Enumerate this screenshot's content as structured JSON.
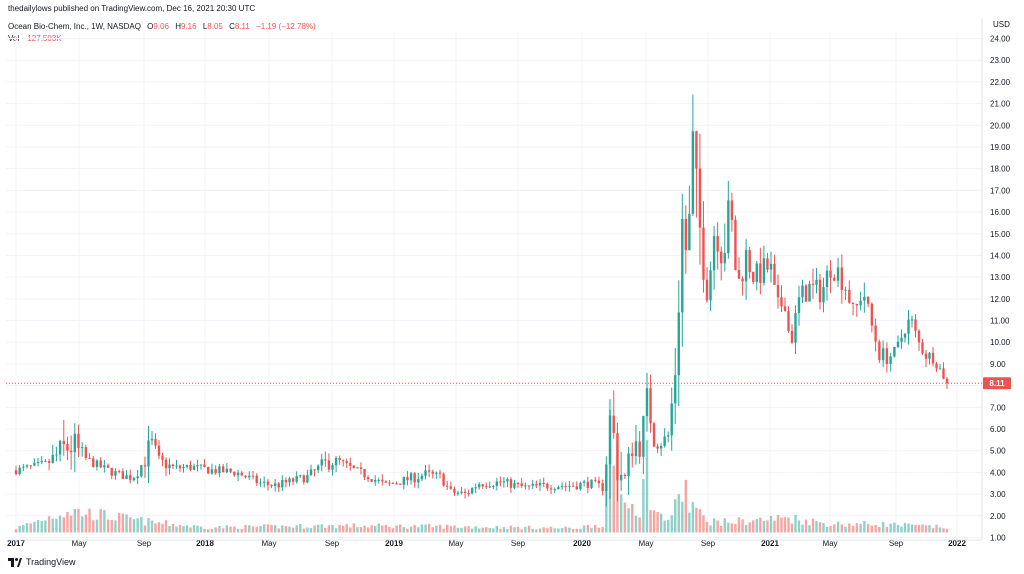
{
  "header": {
    "publisher": "thedailylows published on TradingView.com, Dec 16, 2021 20:30 UTC",
    "symbol": "Ocean Bio-Chem, Inc., 1W, NASDAQ",
    "o_label": "O",
    "o_value": "9.06",
    "h_label": "H",
    "h_value": "9.16",
    "l_label": "L",
    "l_value": "8.05",
    "c_label": "C",
    "c_value": "8.11",
    "change": "−1.19 (−12.78%)",
    "vol_label": "Vol",
    "vol_value": "127.503K"
  },
  "footer": {
    "brand": "TradingView"
  },
  "colors": {
    "up": "#26a69a",
    "down": "#ef5350",
    "up_vol": "#8fd1c9",
    "down_vol": "#f6a5a3",
    "grid": "#f0f3fa"
  },
  "chart_data": {
    "type": "candlestick",
    "timeframe": "1W",
    "currency": "USD",
    "ylim": [
      0.5,
      24.4
    ],
    "y_ticks": [
      "1.00",
      "2.00",
      "3.00",
      "4.00",
      "5.00",
      "6.00",
      "7.00",
      "8.00",
      "9.00",
      "10.00",
      "11.00",
      "12.00",
      "13.00",
      "14.00",
      "15.00",
      "16.00",
      "17.00",
      "18.00",
      "19.00",
      "20.00",
      "21.00",
      "22.00",
      "23.00",
      "24.00"
    ],
    "x_ticks": [
      "2017",
      "May",
      "Sep",
      "2018",
      "May",
      "Sep",
      "2019",
      "May",
      "Sep",
      "2020",
      "May",
      "Sep",
      "2021",
      "May",
      "Sep",
      "2022"
    ],
    "last_price": "8.11",
    "path": [
      [
        "2017-01-01",
        4.1,
        0.25
      ],
      [
        "2017-03-01",
        4.4,
        0.3
      ],
      [
        "2017-04-15",
        5.3,
        1.5
      ],
      [
        "2017-05-15",
        4.6,
        0.3
      ],
      [
        "2017-06-15",
        4.2,
        0.3
      ],
      [
        "2017-07-15",
        3.9,
        0.3
      ],
      [
        "2017-08-10",
        3.75,
        0.3
      ],
      [
        "2017-09-01",
        4.5,
        0.6
      ],
      [
        "2017-09-15",
        5.3,
        1.0
      ],
      [
        "2017-10-01",
        4.5,
        0.5
      ],
      [
        "2017-11-01",
        4.2,
        0.3
      ],
      [
        "2017-12-01",
        4.25,
        0.3
      ],
      [
        "2018-01-15",
        4.1,
        0.3
      ],
      [
        "2018-03-01",
        4.0,
        0.3
      ],
      [
        "2018-04-15",
        3.5,
        0.3
      ],
      [
        "2018-05-15",
        3.4,
        0.3
      ],
      [
        "2018-07-15",
        3.8,
        0.3
      ],
      [
        "2018-08-25",
        4.5,
        0.6
      ],
      [
        "2018-09-15",
        4.5,
        0.3
      ],
      [
        "2018-10-15",
        4.1,
        0.3
      ],
      [
        "2018-11-15",
        3.8,
        0.3
      ],
      [
        "2018-12-15",
        3.4,
        0.3
      ],
      [
        "2019-01-15",
        3.6,
        0.3
      ],
      [
        "2019-03-01",
        3.9,
        0.4
      ],
      [
        "2019-04-01",
        3.8,
        0.3
      ],
      [
        "2019-04-20",
        3.1,
        0.3
      ],
      [
        "2019-05-20",
        3.0,
        0.3
      ],
      [
        "2019-06-15",
        3.5,
        0.3
      ],
      [
        "2019-08-01",
        3.55,
        0.3
      ],
      [
        "2019-09-15",
        3.3,
        0.3
      ],
      [
        "2019-11-01",
        3.4,
        0.3
      ],
      [
        "2019-12-15",
        3.4,
        0.3
      ],
      [
        "2020-01-15",
        3.5,
        0.3
      ],
      [
        "2020-02-10",
        3.3,
        0.3
      ],
      [
        "2020-02-24",
        6.5,
        2.0
      ],
      [
        "2020-03-09",
        4.2,
        1.5
      ],
      [
        "2020-03-23",
        3.6,
        0.8
      ],
      [
        "2020-04-06",
        5.5,
        1.2
      ],
      [
        "2020-04-20",
        5.2,
        0.8
      ],
      [
        "2020-05-04",
        7.4,
        1.2
      ],
      [
        "2020-05-18",
        5.5,
        0.8
      ],
      [
        "2020-06-01",
        5.4,
        0.5
      ],
      [
        "2020-06-15",
        5.7,
        0.5
      ],
      [
        "2020-06-29",
        9.0,
        1.5
      ],
      [
        "2020-07-13",
        16.0,
        2.0
      ],
      [
        "2020-07-20",
        14.0,
        1.5
      ],
      [
        "2020-07-27",
        15.5,
        2.5
      ],
      [
        "2020-08-03",
        19.0,
        3.5
      ],
      [
        "2020-08-10",
        16.0,
        2.5
      ],
      [
        "2020-08-17",
        15.0,
        2.0
      ],
      [
        "2020-09-01",
        12.5,
        1.5
      ],
      [
        "2020-09-15",
        15.5,
        1.2
      ],
      [
        "2020-10-01",
        14.5,
        2.5
      ],
      [
        "2020-10-15",
        16.0,
        1.5
      ],
      [
        "2020-10-29",
        12.5,
        1.0
      ],
      [
        "2020-11-15",
        14.0,
        1.0
      ],
      [
        "2020-12-01",
        13.0,
        0.8
      ],
      [
        "2021-01-01",
        13.5,
        1.0
      ],
      [
        "2021-01-15",
        11.5,
        0.8
      ],
      [
        "2021-02-01",
        12.0,
        0.8
      ],
      [
        "2021-02-10",
        9.8,
        0.6
      ],
      [
        "2021-03-01",
        12.0,
        0.8
      ],
      [
        "2021-03-20",
        12.5,
        0.8
      ],
      [
        "2021-04-15",
        12.3,
        0.8
      ],
      [
        "2021-05-01",
        13.5,
        0.8
      ],
      [
        "2021-05-15",
        13.3,
        0.8
      ],
      [
        "2021-06-01",
        12.5,
        0.8
      ],
      [
        "2021-06-15",
        11.2,
        0.6
      ],
      [
        "2021-07-01",
        12.5,
        0.8
      ],
      [
        "2021-07-15",
        11.0,
        0.6
      ],
      [
        "2021-08-01",
        9.5,
        0.6
      ],
      [
        "2021-08-15",
        9.3,
        0.5
      ],
      [
        "2021-09-01",
        9.5,
        0.5
      ],
      [
        "2021-09-20",
        10.8,
        0.6
      ],
      [
        "2021-10-01",
        11.0,
        0.6
      ],
      [
        "2021-10-15",
        10.0,
        0.5
      ],
      [
        "2021-11-01",
        9.4,
        0.5
      ],
      [
        "2021-11-15",
        9.3,
        0.4
      ],
      [
        "2021-12-13",
        8.11,
        0.3
      ]
    ],
    "volume": [
      [
        "2017-01-01",
        0.25
      ],
      [
        "2017-04-10",
        1.3
      ],
      [
        "2017-09-15",
        0.6
      ],
      [
        "2018-01-01",
        0.3
      ],
      [
        "2018-09-01",
        0.4
      ],
      [
        "2019-05-01",
        0.35
      ],
      [
        "2019-12-15",
        0.25
      ],
      [
        "2020-02-10",
        0.5
      ],
      [
        "2020-02-24",
        6.0
      ],
      [
        "2020-03-02",
        2.5
      ],
      [
        "2020-03-09",
        6.0
      ],
      [
        "2020-03-16",
        1.5
      ],
      [
        "2020-03-23",
        2.5
      ],
      [
        "2020-03-30",
        1.2
      ],
      [
        "2020-04-06",
        3.0
      ],
      [
        "2020-04-13",
        1.0
      ],
      [
        "2020-04-20",
        1.3
      ],
      [
        "2020-05-04",
        4.5
      ],
      [
        "2020-05-11",
        1.8
      ],
      [
        "2020-05-18",
        1.2
      ],
      [
        "2020-06-01",
        0.9
      ],
      [
        "2020-06-15",
        0.8
      ],
      [
        "2020-06-29",
        1.5
      ],
      [
        "2020-07-13",
        2.5
      ],
      [
        "2020-07-20",
        2.6
      ],
      [
        "2020-07-27",
        1.2
      ],
      [
        "2020-08-03",
        1.8
      ],
      [
        "2020-08-10",
        1.2
      ],
      [
        "2020-08-17",
        1.0
      ],
      [
        "2020-09-01",
        0.7
      ],
      [
        "2020-10-01",
        0.6
      ],
      [
        "2021-01-15",
        0.8
      ],
      [
        "2021-02-01",
        0.9
      ],
      [
        "2021-05-01",
        0.5
      ],
      [
        "2021-08-01",
        0.5
      ],
      [
        "2021-10-01",
        0.4
      ],
      [
        "2021-12-13",
        0.3
      ]
    ]
  }
}
